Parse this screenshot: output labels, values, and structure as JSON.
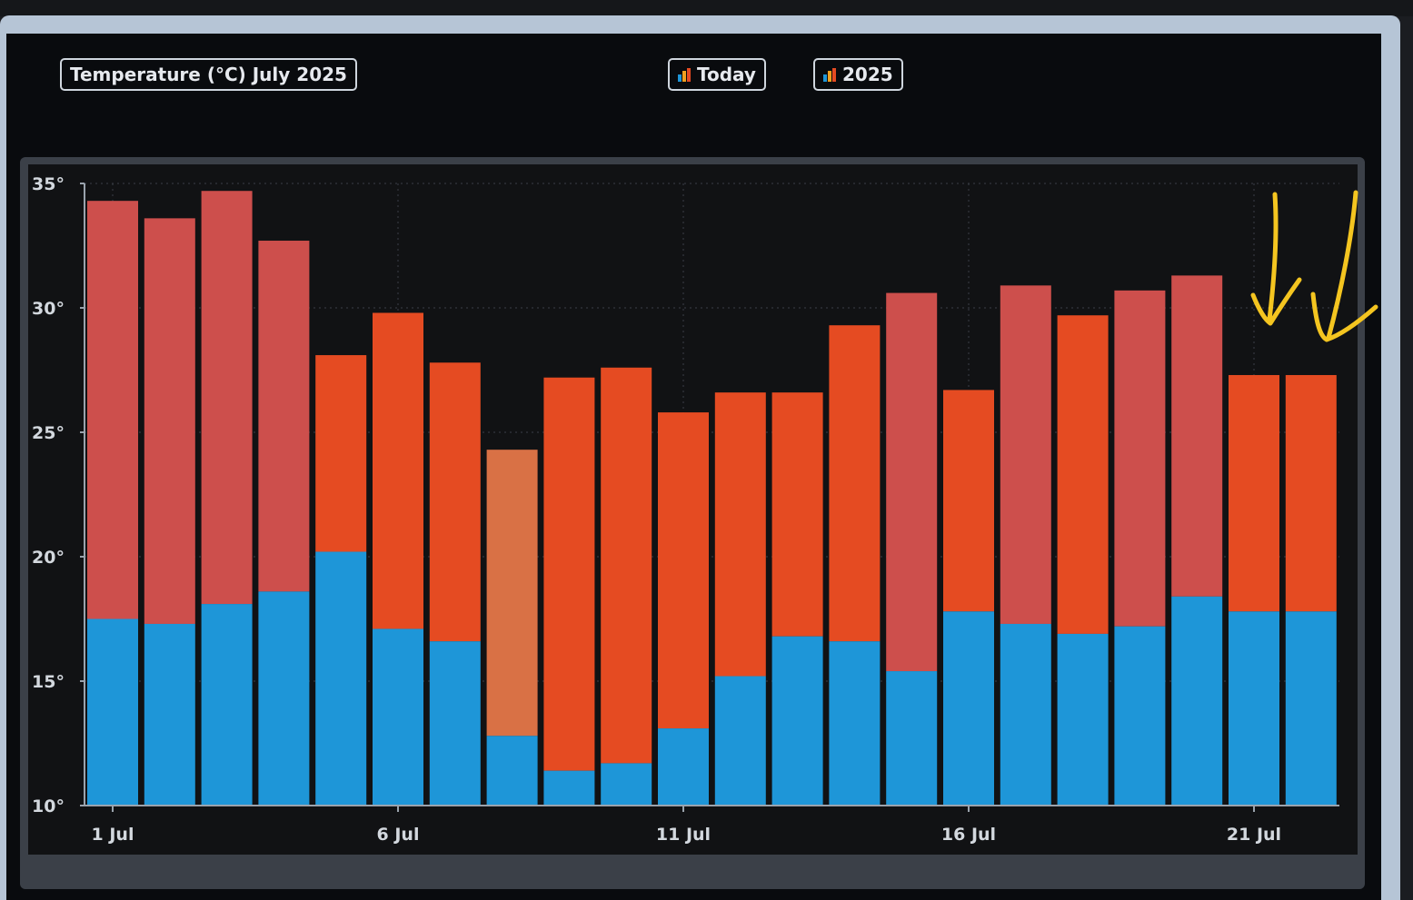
{
  "header": {
    "title": "Temperature (°C) July 2025",
    "btn_today": "Today",
    "btn_year": "2025"
  },
  "colors": {
    "min_bar": "#1e96d8",
    "hot_range": "#cd4f4c",
    "warm_range": "#e54b22",
    "mild_range": "#d97145",
    "annotation": "#f4c520"
  },
  "chart_data": {
    "type": "bar",
    "title": "Temperature (°C) July 2025",
    "ylim": [
      10,
      35
    ],
    "yticks": [
      10,
      15,
      20,
      25,
      30,
      35
    ],
    "ytick_labels": [
      "10°",
      "15°",
      "20°",
      "25°",
      "30°",
      "35°"
    ],
    "x_tick_labels": [
      "1 Jul",
      "6 Jul",
      "11 Jul",
      "16 Jul",
      "21 Jul"
    ],
    "grid": true,
    "categories": [
      "1 Jul",
      "2 Jul",
      "3 Jul",
      "4 Jul",
      "5 Jul",
      "6 Jul",
      "7 Jul",
      "8 Jul",
      "9 Jul",
      "10 Jul",
      "11 Jul",
      "12 Jul",
      "13 Jul",
      "14 Jul",
      "15 Jul",
      "16 Jul",
      "17 Jul",
      "18 Jul",
      "19 Jul",
      "20 Jul",
      "21 Jul",
      "22 Jul"
    ],
    "series": [
      {
        "values": [
          17.5,
          17.3,
          18.1,
          18.6,
          20.2,
          17.1,
          16.6,
          12.8,
          11.4,
          11.7,
          13.1,
          15.2,
          16.8,
          16.6,
          15.4,
          17.8,
          17.3,
          16.9,
          17.2,
          18.4,
          17.8,
          17.8
        ]
      },
      {
        "values": [
          34.3,
          33.6,
          34.7,
          32.7,
          28.1,
          29.8,
          27.8,
          24.3,
          27.2,
          27.6,
          25.8,
          26.6,
          26.6,
          29.3,
          30.6,
          26.7,
          30.9,
          29.7,
          30.7,
          31.3,
          27.3,
          27.3
        ]
      }
    ],
    "range_color_class": [
      "hot",
      "hot",
      "hot",
      "hot",
      "warm",
      "warm",
      "warm",
      "mild",
      "warm",
      "warm",
      "warm",
      "warm",
      "warm",
      "warm",
      "hot",
      "warm",
      "hot",
      "warm",
      "hot",
      "hot",
      "warm",
      "warm"
    ]
  }
}
